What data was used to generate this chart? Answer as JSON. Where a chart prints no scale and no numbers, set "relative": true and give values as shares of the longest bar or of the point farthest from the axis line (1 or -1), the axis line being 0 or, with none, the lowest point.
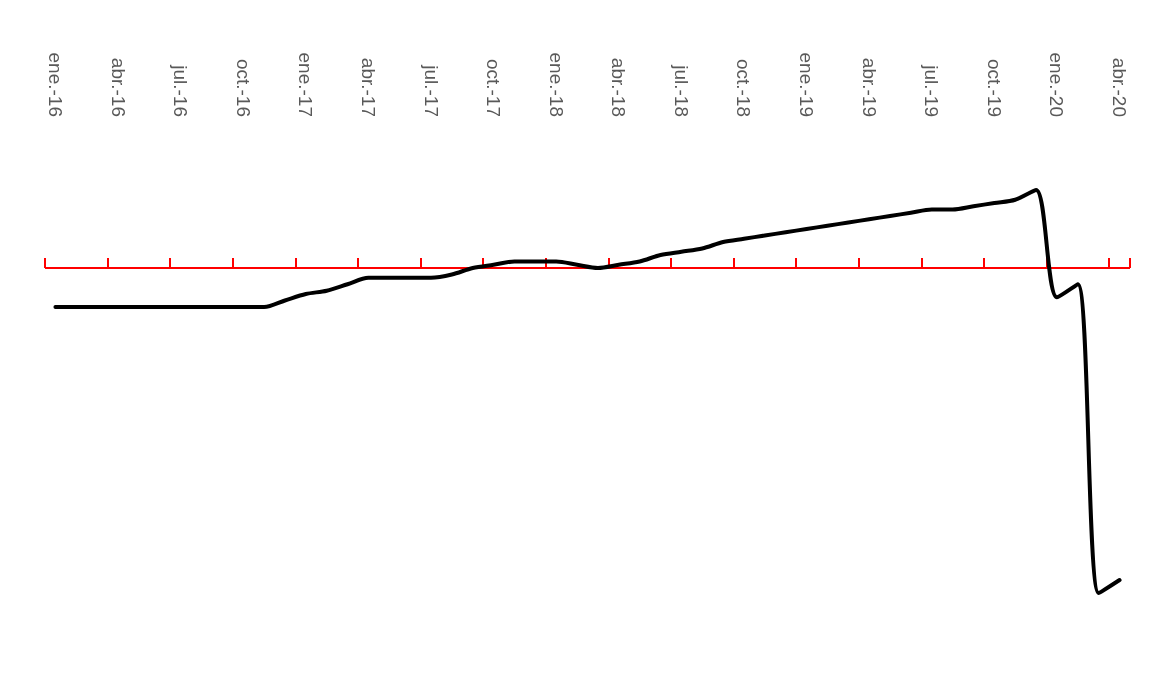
{
  "chart_data": {
    "type": "line",
    "relative": true,
    "marker": "none",
    "grid": false,
    "ref_lines": [
      {
        "axis": "y",
        "value": 0,
        "color": "#ff0000"
      }
    ],
    "categories": [
      "ene.-16",
      null,
      null,
      "abr.-16",
      null,
      null,
      "jul.-16",
      null,
      null,
      "oct.-16",
      null,
      null,
      "ene.-17",
      null,
      null,
      "abr.-17",
      null,
      null,
      "jul.-17",
      null,
      null,
      "oct.-17",
      null,
      null,
      "ene.-18",
      null,
      null,
      "abr.-18",
      null,
      null,
      "jul.-18",
      null,
      null,
      "oct.-18",
      null,
      null,
      "ene.-19",
      null,
      null,
      "abr.-19",
      null,
      null,
      "jul.-19",
      null,
      null,
      "oct.-19",
      null,
      null,
      "ene.-20",
      null,
      null,
      "abr.-20"
    ],
    "series": [
      {
        "color": "#000000",
        "values": [
          -0.12,
          -0.12,
          -0.12,
          -0.12,
          -0.12,
          -0.12,
          -0.12,
          -0.12,
          -0.12,
          -0.12,
          -0.12,
          -0.1,
          -0.08,
          -0.07,
          -0.05,
          -0.03,
          -0.03,
          -0.03,
          -0.03,
          -0.02,
          0.0,
          0.01,
          0.02,
          0.02,
          0.02,
          0.01,
          0.0,
          0.01,
          0.02,
          0.04,
          0.05,
          0.06,
          0.08,
          0.09,
          0.1,
          0.11,
          0.12,
          0.13,
          0.14,
          0.15,
          0.16,
          0.17,
          0.18,
          0.18,
          0.19,
          0.2,
          0.21,
          0.24,
          -0.09,
          -0.05,
          -1,
          -0.96
        ]
      }
    ]
  }
}
